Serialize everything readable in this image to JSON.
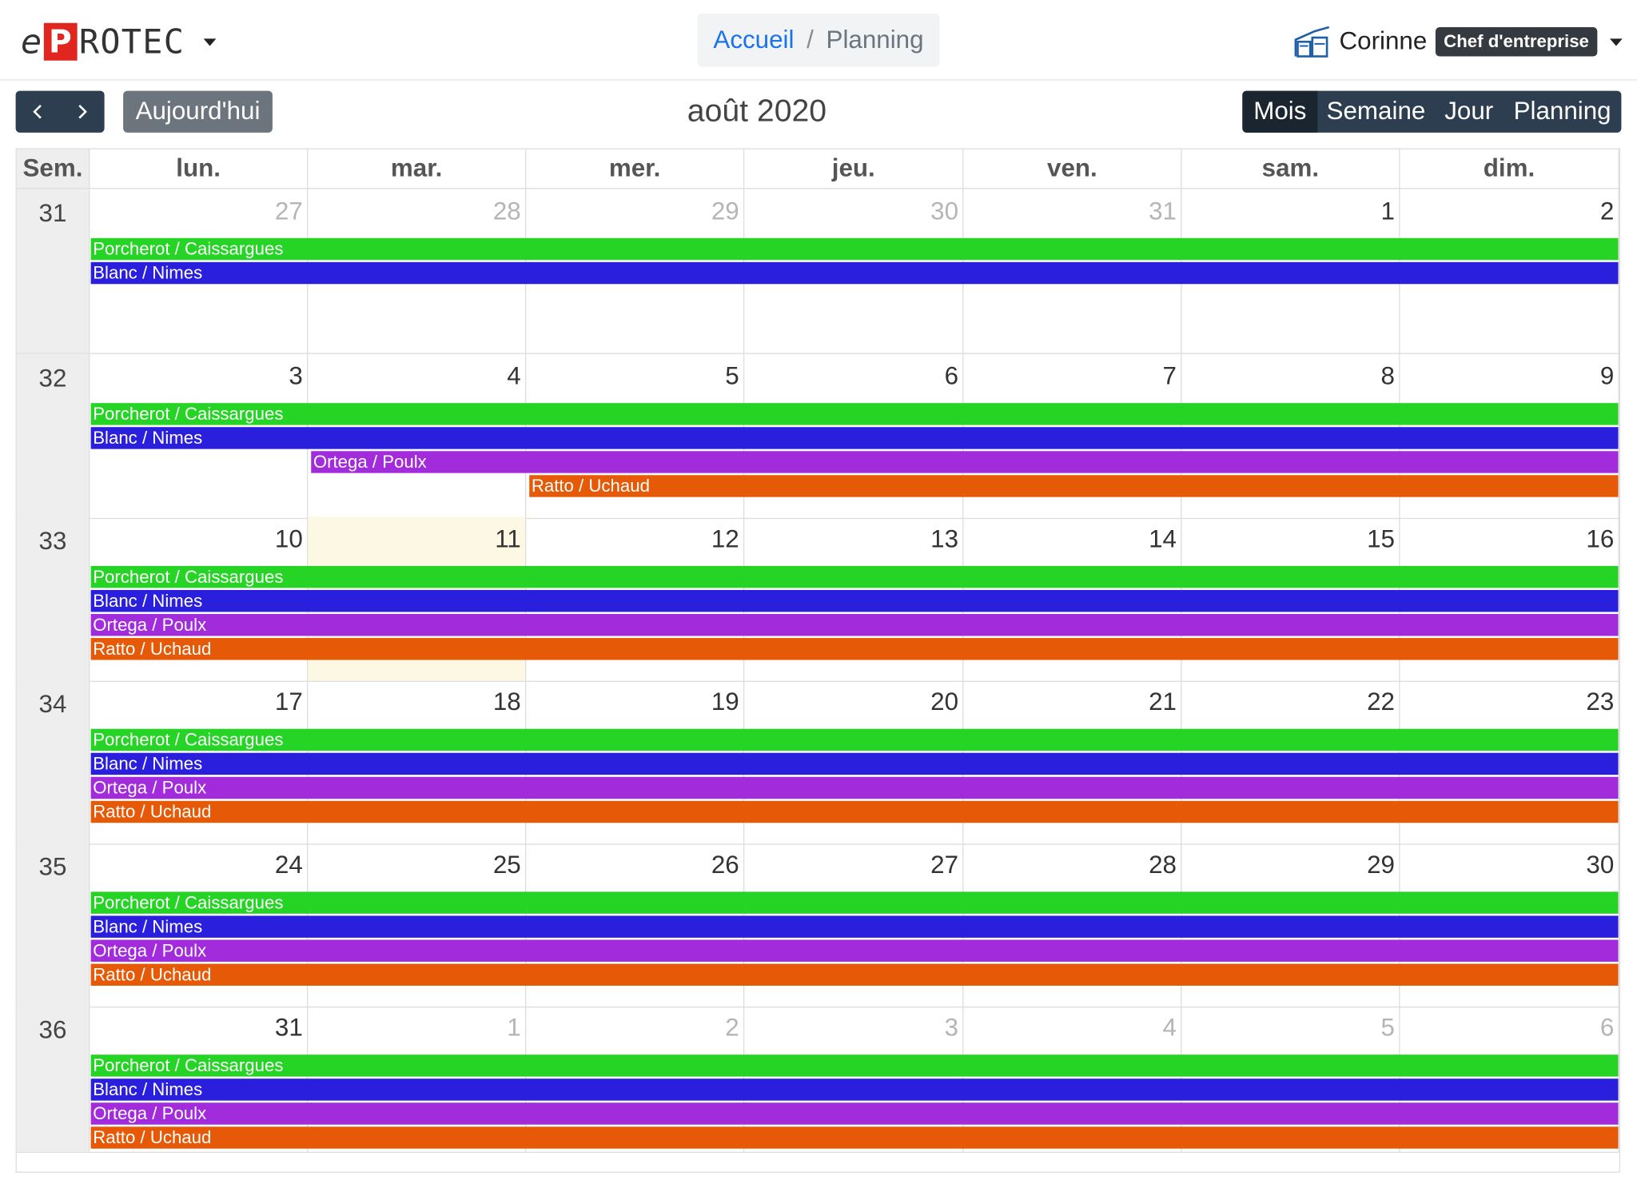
{
  "header": {
    "logo": {
      "e": "e",
      "p": "P",
      "rest": "ROTEC"
    },
    "breadcrumb": {
      "home": "Accueil",
      "separator": "/",
      "current": "Planning"
    },
    "user": {
      "name": "Corinne",
      "role": "Chef d'entreprise"
    }
  },
  "toolbar": {
    "today_label": "Aujourd'hui",
    "title": "août 2020",
    "views": [
      "Mois",
      "Semaine",
      "Jour",
      "Planning"
    ],
    "active_view": "Mois"
  },
  "calendar": {
    "week_header": "Sem.",
    "day_headers": [
      "lun.",
      "mar.",
      "mer.",
      "jeu.",
      "ven.",
      "sam.",
      "dim."
    ],
    "weeks": [
      {
        "number": "31",
        "days": [
          "27",
          "28",
          "29",
          "30",
          "31",
          "1",
          "2"
        ]
      },
      {
        "number": "32",
        "days": [
          "3",
          "4",
          "5",
          "6",
          "7",
          "8",
          "9"
        ]
      },
      {
        "number": "33",
        "days": [
          "10",
          "11",
          "12",
          "13",
          "14",
          "15",
          "16"
        ]
      },
      {
        "number": "34",
        "days": [
          "17",
          "18",
          "19",
          "20",
          "21",
          "22",
          "23"
        ]
      },
      {
        "number": "35",
        "days": [
          "24",
          "25",
          "26",
          "27",
          "28",
          "29",
          "30"
        ]
      },
      {
        "number": "36",
        "days": [
          "31",
          "1",
          "2",
          "3",
          "4",
          "5",
          "6"
        ]
      }
    ],
    "other_month": [
      [
        0,
        1,
        2,
        3,
        4
      ],
      [],
      [],
      [],
      [],
      [
        1,
        2,
        3,
        4,
        5,
        6
      ]
    ],
    "today": {
      "week": 2,
      "day": 1
    },
    "events": [
      {
        "week": 0,
        "start_day": 0,
        "end_day": 6,
        "title": "Porcherot / Caissargues",
        "color": "#25d425"
      },
      {
        "week": 0,
        "start_day": 0,
        "end_day": 6,
        "title": "Blanc / Nimes",
        "color": "#2a1fdc"
      },
      {
        "week": 1,
        "start_day": 0,
        "end_day": 6,
        "title": "Porcherot / Caissargues",
        "color": "#25d425"
      },
      {
        "week": 1,
        "start_day": 0,
        "end_day": 6,
        "title": "Blanc / Nimes",
        "color": "#2a1fdc"
      },
      {
        "week": 1,
        "start_day": 1,
        "end_day": 6,
        "title": "Ortega / Poulx",
        "color": "#a22bdc"
      },
      {
        "week": 1,
        "start_day": 2,
        "end_day": 6,
        "title": "Ratto / Uchaud",
        "color": "#e65a07"
      },
      {
        "week": 2,
        "start_day": 0,
        "end_day": 6,
        "title": "Porcherot / Caissargues",
        "color": "#25d425"
      },
      {
        "week": 2,
        "start_day": 0,
        "end_day": 6,
        "title": "Blanc / Nimes",
        "color": "#2a1fdc"
      },
      {
        "week": 2,
        "start_day": 0,
        "end_day": 6,
        "title": "Ortega / Poulx",
        "color": "#a22bdc"
      },
      {
        "week": 2,
        "start_day": 0,
        "end_day": 6,
        "title": "Ratto / Uchaud",
        "color": "#e65a07"
      },
      {
        "week": 3,
        "start_day": 0,
        "end_day": 6,
        "title": "Porcherot / Caissargues",
        "color": "#25d425"
      },
      {
        "week": 3,
        "start_day": 0,
        "end_day": 6,
        "title": "Blanc / Nimes",
        "color": "#2a1fdc"
      },
      {
        "week": 3,
        "start_day": 0,
        "end_day": 6,
        "title": "Ortega / Poulx",
        "color": "#a22bdc"
      },
      {
        "week": 3,
        "start_day": 0,
        "end_day": 6,
        "title": "Ratto / Uchaud",
        "color": "#e65a07"
      },
      {
        "week": 4,
        "start_day": 0,
        "end_day": 6,
        "title": "Porcherot / Caissargues",
        "color": "#25d425"
      },
      {
        "week": 4,
        "start_day": 0,
        "end_day": 6,
        "title": "Blanc / Nimes",
        "color": "#2a1fdc"
      },
      {
        "week": 4,
        "start_day": 0,
        "end_day": 6,
        "title": "Ortega / Poulx",
        "color": "#a22bdc"
      },
      {
        "week": 4,
        "start_day": 0,
        "end_day": 6,
        "title": "Ratto / Uchaud",
        "color": "#e65a07"
      },
      {
        "week": 5,
        "start_day": 0,
        "end_day": 6,
        "title": "Porcherot / Caissargues",
        "color": "#25d425"
      },
      {
        "week": 5,
        "start_day": 0,
        "end_day": 6,
        "title": "Blanc / Nimes",
        "color": "#2a1fdc"
      },
      {
        "week": 5,
        "start_day": 0,
        "end_day": 6,
        "title": "Ortega / Poulx",
        "color": "#a22bdc"
      },
      {
        "week": 5,
        "start_day": 0,
        "end_day": 6,
        "title": "Ratto / Uchaud",
        "color": "#e65a07"
      }
    ]
  }
}
